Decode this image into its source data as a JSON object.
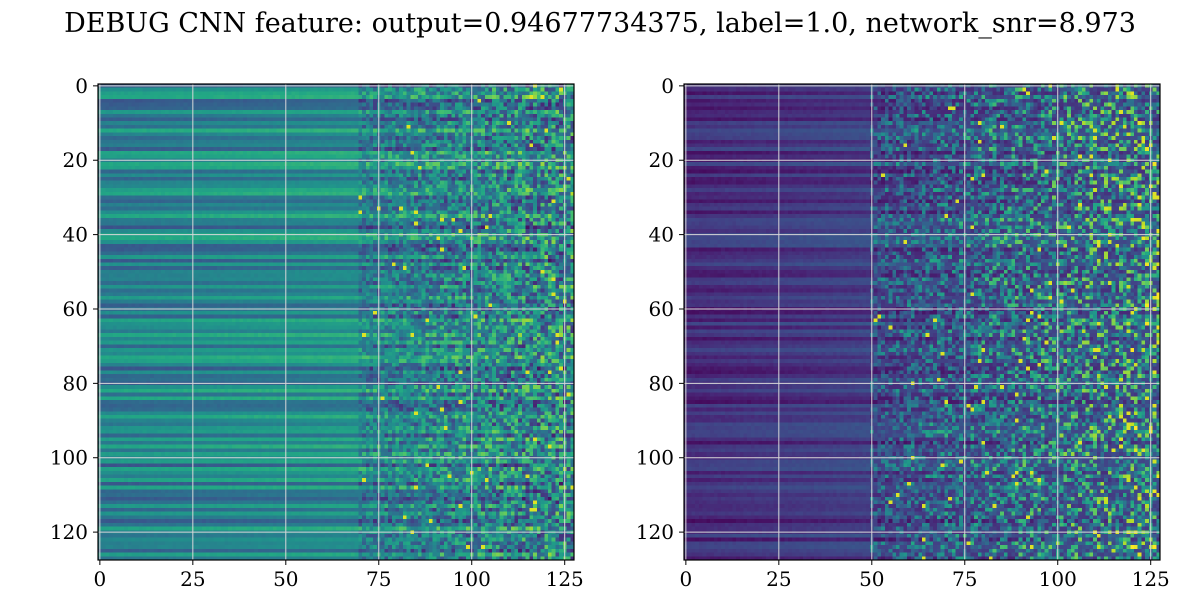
{
  "title": "DEBUG CNN feature: output=0.94677734375, label=1.0, network_snr=8.973",
  "chart_data": [
    {
      "type": "heatmap",
      "title": "",
      "colormap": "viridis",
      "rows": 128,
      "cols": 128,
      "xlim": [
        0,
        127
      ],
      "ylim": [
        127,
        0
      ],
      "xticks": [
        0,
        25,
        50,
        75,
        100,
        125
      ],
      "yticks": [
        0,
        20,
        40,
        60,
        80,
        100,
        120
      ],
      "grid": true,
      "pattern": "uniform horizontal bands for columns 0-70, noisy speckled values for columns 70-127",
      "value_range": [
        0,
        1
      ],
      "band_mean": 0.42,
      "noise_mean": 0.5
    },
    {
      "type": "heatmap",
      "title": "",
      "colormap": "viridis",
      "rows": 128,
      "cols": 128,
      "xlim": [
        0,
        127
      ],
      "ylim": [
        127,
        0
      ],
      "xticks": [
        0,
        25,
        50,
        75,
        100,
        125
      ],
      "yticks": [
        0,
        20,
        40,
        60,
        80,
        100,
        120
      ],
      "grid": true,
      "pattern": "dark banded region for columns 0-50, increasingly noisy speckled values for columns 50-127",
      "value_range": [
        0,
        1
      ],
      "band_mean": 0.12,
      "noise_mean": 0.22
    }
  ]
}
